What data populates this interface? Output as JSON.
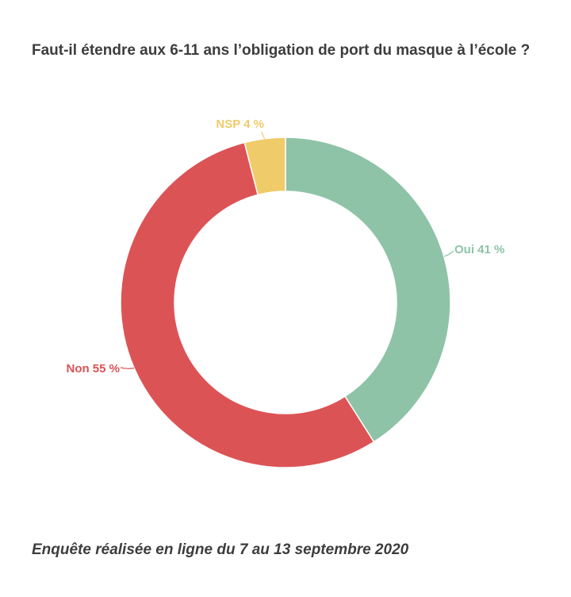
{
  "title": "Faut-il étendre aux 6-11 ans l’obligation de port du masque à l’école ?",
  "footer": "Enquête réalisée en ligne du 7 au 13 septembre 2020",
  "chart_data": {
    "type": "pie",
    "variant": "donut",
    "title": "Faut-il étendre aux 6-11 ans l’obligation de port du masque à l’école ?",
    "start_angle_deg": 0,
    "direction": "clockwise",
    "slices": [
      {
        "name": "Oui",
        "value": 41,
        "label": "Oui 41 %",
        "color": "#8ec3a7"
      },
      {
        "name": "Non",
        "value": 55,
        "label": "Non 55 %",
        "color": "#dc5356"
      },
      {
        "name": "NSP",
        "value": 4,
        "label": "NSP 4 %",
        "color": "#f0cb69"
      }
    ],
    "legend": "none",
    "data_labels": "outside-with-leader-lines"
  }
}
